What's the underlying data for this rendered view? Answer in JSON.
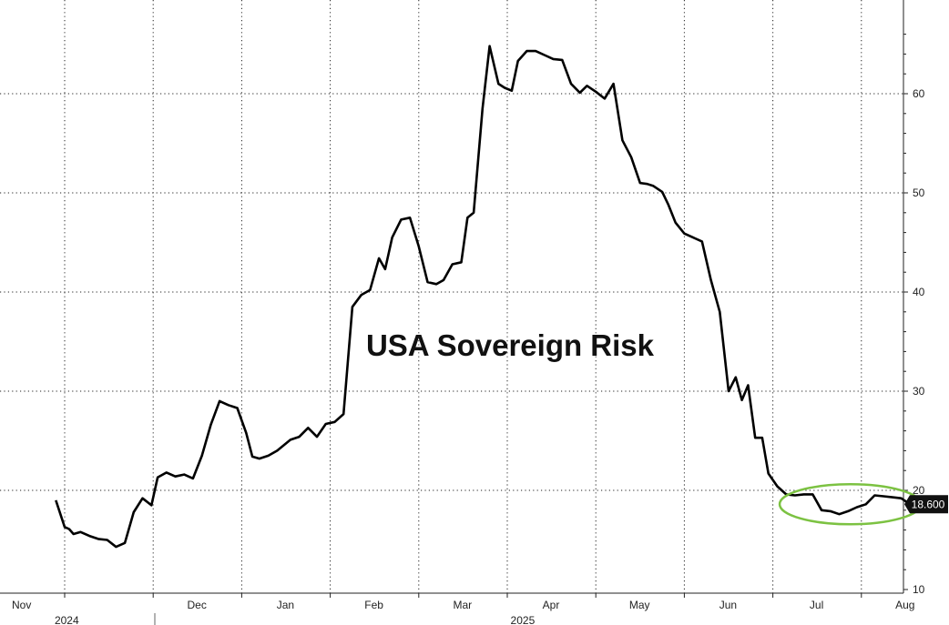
{
  "chart_data": {
    "type": "line",
    "title": "USA Sovereign Risk",
    "xlabel": "",
    "ylabel": "",
    "ylim": [
      10,
      67
    ],
    "yticks": [
      10,
      20,
      30,
      40,
      50,
      60
    ],
    "grid": true,
    "months": [
      {
        "label": "Nov",
        "pos": 0.0
      },
      {
        "label": "Dec",
        "pos": 1.0
      },
      {
        "label": "Jan",
        "pos": 2.0
      },
      {
        "label": "Feb",
        "pos": 3.0
      },
      {
        "label": "Mar",
        "pos": 4.0
      },
      {
        "label": "Apr",
        "pos": 5.0
      },
      {
        "label": "May",
        "pos": 6.0
      },
      {
        "label": "Jun",
        "pos": 7.0
      },
      {
        "label": "Jul",
        "pos": 8.0
      },
      {
        "label": "Aug",
        "pos": 9.0
      }
    ],
    "years": [
      {
        "label": "2024",
        "pos": 0.6
      },
      {
        "label": "2025",
        "pos": 5.75
      }
    ],
    "last_value": "18.600",
    "highlight": {
      "x_from": 8.2,
      "x_to": 9.55,
      "color": "#7cc242"
    },
    "series": [
      {
        "color": "#000000",
        "x": [
          -0.1,
          0.0,
          0.05,
          0.1,
          0.18,
          0.28,
          0.38,
          0.48,
          0.58,
          0.68,
          0.78,
          0.88,
          0.98,
          1.05,
          1.15,
          1.25,
          1.35,
          1.45,
          1.55,
          1.65,
          1.75,
          1.85,
          1.95,
          2.05,
          2.12,
          2.2,
          2.3,
          2.4,
          2.55,
          2.65,
          2.75,
          2.85,
          2.95,
          3.05,
          3.15,
          3.25,
          3.35,
          3.45,
          3.55,
          3.62,
          3.7,
          3.8,
          3.9,
          4.0,
          4.1,
          4.2,
          4.28,
          4.38,
          4.48,
          4.55,
          4.62,
          4.72,
          4.8,
          4.9,
          4.97,
          5.05,
          5.12,
          5.22,
          5.32,
          5.42,
          5.52,
          5.62,
          5.72,
          5.82,
          5.9,
          6.0,
          6.1,
          6.2,
          6.3,
          6.4,
          6.5,
          6.58,
          6.65,
          6.75,
          6.82,
          6.9,
          7.0,
          7.1,
          7.2,
          7.3,
          7.4,
          7.5,
          7.58,
          7.65,
          7.72,
          7.8,
          7.88,
          7.95,
          8.05,
          8.15,
          8.25,
          8.35,
          8.45,
          8.55,
          8.65,
          8.75,
          8.85,
          8.95,
          9.05,
          9.15,
          9.25,
          9.35,
          9.45,
          9.55
        ],
        "values": [
          19.0,
          16.3,
          16.1,
          15.6,
          15.8,
          15.4,
          15.1,
          15.0,
          14.3,
          14.7,
          17.8,
          19.2,
          18.5,
          21.3,
          21.8,
          21.4,
          21.6,
          21.2,
          23.5,
          26.6,
          29.0,
          28.6,
          28.3,
          25.8,
          23.4,
          23.2,
          23.5,
          24.0,
          25.1,
          25.4,
          26.3,
          25.4,
          26.7,
          26.9,
          27.7,
          38.5,
          39.7,
          40.2,
          43.4,
          42.3,
          45.5,
          47.3,
          47.5,
          44.6,
          41.0,
          40.8,
          41.2,
          42.8,
          43.0,
          47.5,
          48.0,
          58.5,
          64.8,
          61.0,
          60.6,
          60.3,
          63.3,
          64.3,
          64.3,
          63.9,
          63.5,
          63.4,
          61.0,
          60.1,
          60.8,
          60.2,
          59.5,
          61.0,
          55.3,
          53.6,
          51.0,
          50.9,
          50.7,
          50.1,
          48.8,
          47.0,
          45.9,
          45.5,
          45.1,
          41.2,
          38.0,
          30.0,
          31.4,
          29.1,
          30.6,
          25.3,
          25.3,
          21.7,
          20.4,
          19.6,
          19.5,
          19.6,
          19.6,
          18.0,
          17.9,
          17.6,
          17.9,
          18.3,
          18.6,
          19.5,
          19.4,
          19.3,
          19.2,
          18.6
        ]
      }
    ]
  }
}
